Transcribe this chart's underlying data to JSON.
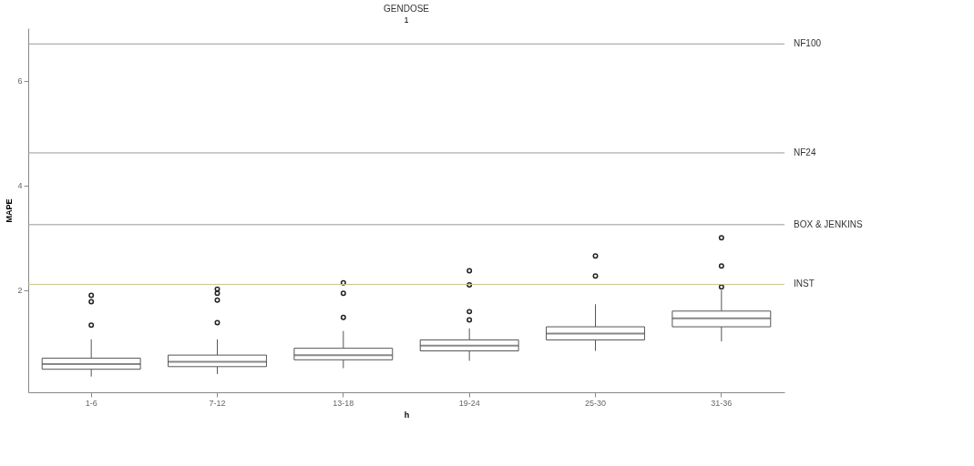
{
  "chart_data": {
    "type": "box",
    "title": "GENDOSE",
    "subtitle": "1",
    "xlabel": "h",
    "ylabel": "MAPE",
    "categories": [
      "1-6",
      "7-12",
      "13-18",
      "19-24",
      "25-30",
      "31-36"
    ],
    "boxes": [
      {
        "low": 0.35,
        "q1": 0.49,
        "median": 0.59,
        "q3": 0.7,
        "high": 1.06,
        "outliers": [
          1.33,
          1.78,
          1.9
        ]
      },
      {
        "low": 0.4,
        "q1": 0.54,
        "median": 0.63,
        "q3": 0.76,
        "high": 1.06,
        "outliers": [
          1.38,
          1.81,
          1.94,
          2.02
        ]
      },
      {
        "low": 0.51,
        "q1": 0.67,
        "median": 0.76,
        "q3": 0.89,
        "high": 1.22,
        "outliers": [
          1.48,
          1.94,
          2.14
        ]
      },
      {
        "low": 0.65,
        "q1": 0.84,
        "median": 0.94,
        "q3": 1.05,
        "high": 1.27,
        "outliers": [
          1.43,
          1.59,
          2.1,
          2.37
        ]
      },
      {
        "low": 0.84,
        "q1": 1.05,
        "median": 1.17,
        "q3": 1.3,
        "high": 1.73,
        "outliers": [
          2.27,
          2.65
        ]
      },
      {
        "low": 1.02,
        "q1": 1.3,
        "median": 1.46,
        "q3": 1.6,
        "high": 2.0,
        "outliers": [
          2.06,
          2.46,
          3.0
        ]
      }
    ],
    "color": "#555555",
    "ylim": [
      0.05,
      7.0
    ],
    "yticks": [
      2,
      4,
      6
    ],
    "grid": false,
    "ref_lines": [
      {
        "axis": "y",
        "value": 6.7,
        "label": "NF100",
        "color": "#999999"
      },
      {
        "axis": "y",
        "value": 4.62,
        "label": "NF24",
        "color": "#999999"
      },
      {
        "axis": "y",
        "value": 3.25,
        "label": "BOX & JENKINS",
        "color": "#999999"
      },
      {
        "axis": "y",
        "value": 2.11,
        "label": "INST",
        "color": "#c8c88c"
      }
    ]
  }
}
